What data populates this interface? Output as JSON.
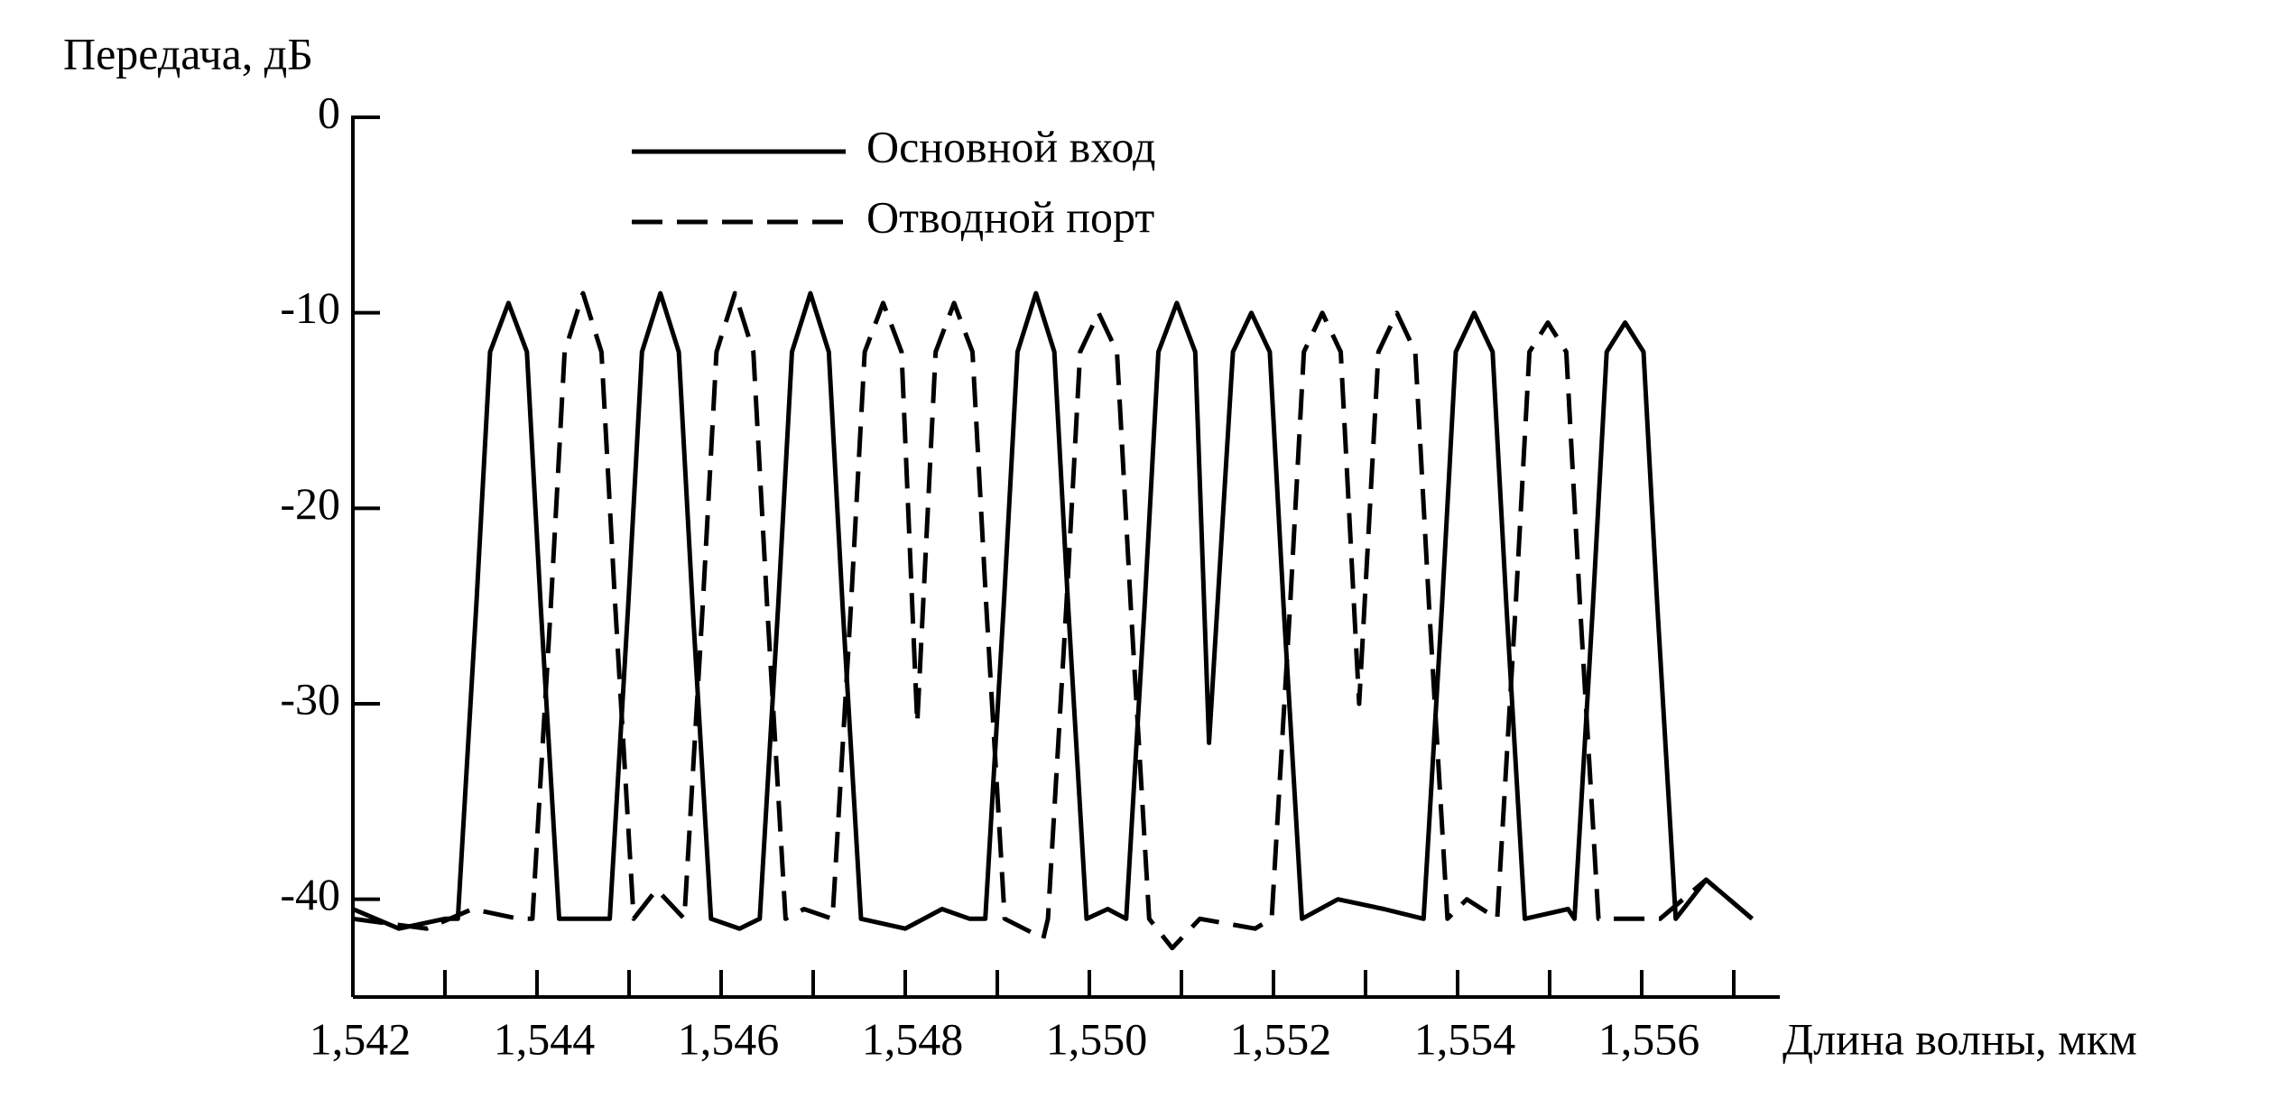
{
  "chart_data": {
    "type": "line",
    "ylabel": "Передача, дБ",
    "xlabel": "Длина волны, мкм",
    "xlim": [
      1.542,
      1.5575
    ],
    "ylim": [
      -45,
      0
    ],
    "xticks": [
      {
        "value": 1.542,
        "label": "1,542"
      },
      {
        "value": 1.544,
        "label": "1,544"
      },
      {
        "value": 1.546,
        "label": "1,546"
      },
      {
        "value": 1.548,
        "label": "1,548"
      },
      {
        "value": 1.55,
        "label": "1,550"
      },
      {
        "value": 1.552,
        "label": "1,552"
      },
      {
        "value": 1.554,
        "label": "1,554"
      },
      {
        "value": 1.556,
        "label": "1,556"
      }
    ],
    "xminorticks": [
      1.543,
      1.545,
      1.547,
      1.549,
      1.551,
      1.553,
      1.555,
      1.557
    ],
    "yticks": [
      0,
      -10,
      -20,
      -30,
      -40
    ],
    "grid": false,
    "legend": "top",
    "series": [
      {
        "name": "Основной вход",
        "color": "#000000",
        "linestyle": "solid",
        "x": [
          1.542,
          1.5425,
          1.543,
          1.54314,
          1.54334,
          1.54349,
          1.54369,
          1.54389,
          1.54404,
          1.54424,
          1.5445,
          1.54479,
          1.54499,
          1.54514,
          1.54534,
          1.54554,
          1.54569,
          1.54589,
          1.5462,
          1.54642,
          1.54662,
          1.54677,
          1.54697,
          1.54717,
          1.54732,
          1.54752,
          1.548,
          1.5484,
          1.5487,
          1.54887,
          1.54907,
          1.54922,
          1.54942,
          1.54962,
          1.54977,
          1.54997,
          1.5502,
          1.5504,
          1.5506,
          1.55075,
          1.55095,
          1.55115,
          1.5513,
          1.55156,
          1.55176,
          1.55196,
          1.55211,
          1.55231,
          1.5527,
          1.5532,
          1.55363,
          1.55383,
          1.55398,
          1.55418,
          1.55438,
          1.55453,
          1.55473,
          1.5552,
          1.55527,
          1.55547,
          1.55562,
          1.55582,
          1.55602,
          1.55617,
          1.55637,
          1.5567,
          1.5572
        ],
        "values": [
          -40.5,
          -41.5,
          -41,
          -41,
          -25,
          -12,
          -9.5,
          -12,
          -25,
          -41,
          -41,
          -41,
          -25,
          -12,
          -9,
          -12,
          -25,
          -41,
          -41.5,
          -41,
          -25,
          -12,
          -9,
          -12,
          -25,
          -41,
          -41.5,
          -40.5,
          -41,
          -41,
          -25,
          -12,
          -9,
          -12,
          -25,
          -41,
          -40.5,
          -41,
          -25,
          -12,
          -9.5,
          -12,
          -32,
          -12,
          -10,
          -12,
          -25,
          -41,
          -40,
          -40.5,
          -41,
          -25,
          -12,
          -10,
          -12,
          -25,
          -41,
          -40.5,
          -41,
          -25,
          -12,
          -10.5,
          -12,
          -25,
          -41,
          -39,
          -41
        ]
      },
      {
        "name": "Отводной порт",
        "color": "#000000",
        "linestyle": "dashed",
        "x": [
          1.542,
          1.5428,
          1.5433,
          1.5438,
          1.54395,
          1.54415,
          1.5443,
          1.5445,
          1.5447,
          1.54485,
          1.54505,
          1.5453,
          1.5456,
          1.5458,
          1.54595,
          1.54615,
          1.54635,
          1.5465,
          1.5467,
          1.5469,
          1.54721,
          1.54741,
          1.54756,
          1.54776,
          1.54796,
          1.54813,
          1.54833,
          1.54853,
          1.54873,
          1.54888,
          1.54908,
          1.5495,
          1.54955,
          1.54975,
          1.5499,
          1.5501,
          1.5503,
          1.55045,
          1.55065,
          1.5509,
          1.5512,
          1.5518,
          1.55198,
          1.55218,
          1.55233,
          1.55253,
          1.55273,
          1.55293,
          1.55314,
          1.55334,
          1.55354,
          1.55369,
          1.55389,
          1.5541,
          1.55443,
          1.55463,
          1.55478,
          1.55498,
          1.55518,
          1.55533,
          1.55553,
          1.5562,
          1.5567,
          1.5572
        ],
        "values": [
          -41,
          -41.5,
          -40.5,
          -41,
          -41,
          -25,
          -12,
          -9,
          -12,
          -25,
          -41,
          -39.5,
          -41,
          -25,
          -12,
          -9,
          -12,
          -25,
          -41,
          -40.5,
          -41,
          -25,
          -12,
          -9.5,
          -12,
          -31,
          -12,
          -9.5,
          -12,
          -25,
          -41,
          -42,
          -41,
          -25,
          -12,
          -10,
          -12,
          -25,
          -41,
          -42.5,
          -41,
          -41.5,
          -41,
          -25,
          -12,
          -10,
          -12,
          -30,
          -12,
          -10,
          -12,
          -25,
          -41,
          -40,
          -41,
          -25,
          -12,
          -10.5,
          -12,
          -25,
          -41,
          -41,
          -39,
          -41
        ]
      }
    ]
  }
}
